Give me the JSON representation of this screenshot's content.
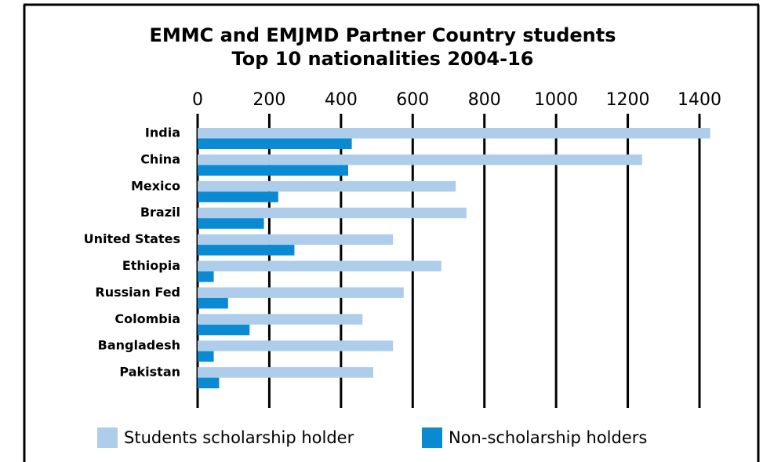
{
  "chart_data": {
    "type": "bar",
    "orientation": "horizontal",
    "title": "EMMC and EMJMD Partner Country students",
    "subtitle": "Top 10 nationalities 2004-16",
    "categories": [
      "India",
      "China",
      "Mexico",
      "Brazil",
      "United States",
      "Ethiopia",
      "Russian Fed",
      "Colombia",
      "Bangladesh",
      "Pakistan"
    ],
    "series": [
      {
        "name": "Students scholarship holder",
        "color": "#aecdeb",
        "values": [
          1430,
          1240,
          720,
          750,
          545,
          680,
          575,
          460,
          545,
          490
        ]
      },
      {
        "name": "Non-scholarship holders",
        "color": "#0a8ad2",
        "values": [
          430,
          420,
          225,
          185,
          270,
          45,
          85,
          145,
          45,
          60
        ]
      }
    ],
    "xlim": [
      0,
      1400
    ],
    "xticks": [
      0,
      200,
      400,
      600,
      800,
      1000,
      1200,
      1400
    ],
    "grid": true,
    "legend": "bottom"
  }
}
